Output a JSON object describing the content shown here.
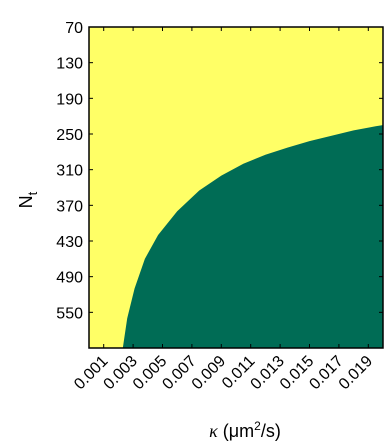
{
  "chart_data": {
    "type": "heatmap",
    "x_axis": {
      "label_symbol": "κ",
      "label_unit_prefix": "(μm",
      "label_unit_power": "2",
      "label_unit_suffix": "/s)",
      "range": [
        0.0,
        0.02
      ],
      "ticks": [
        "0.001",
        "0.003",
        "0.005",
        "0.007",
        "0.009",
        "0.011",
        "0.013",
        "0.015",
        "0.017",
        "0.019"
      ],
      "tick_values": [
        0.001,
        0.003,
        0.005,
        0.007,
        0.009,
        0.011,
        0.013,
        0.015,
        0.017,
        0.019
      ]
    },
    "y_axis": {
      "label_main": "N",
      "label_sub": "t",
      "range": [
        70,
        610
      ],
      "inverted": true,
      "ticks": [
        "70",
        "130",
        "190",
        "250",
        "310",
        "370",
        "430",
        "490",
        "550"
      ],
      "tick_values": [
        70,
        130,
        190,
        250,
        310,
        370,
        430,
        490,
        550
      ]
    },
    "regions": [
      {
        "name": "upper-left",
        "color": "#ffff66",
        "side": "above boundary"
      },
      {
        "name": "lower-right",
        "color": "#006c55",
        "side": "below boundary"
      }
    ],
    "boundary": [
      {
        "x": 0.0023,
        "y": 610
      },
      {
        "x": 0.0026,
        "y": 560
      },
      {
        "x": 0.0031,
        "y": 510
      },
      {
        "x": 0.0038,
        "y": 460
      },
      {
        "x": 0.0047,
        "y": 420
      },
      {
        "x": 0.006,
        "y": 380
      },
      {
        "x": 0.0075,
        "y": 345
      },
      {
        "x": 0.009,
        "y": 320
      },
      {
        "x": 0.0105,
        "y": 300
      },
      {
        "x": 0.012,
        "y": 285
      },
      {
        "x": 0.0135,
        "y": 273
      },
      {
        "x": 0.015,
        "y": 262
      },
      {
        "x": 0.0165,
        "y": 253
      },
      {
        "x": 0.018,
        "y": 244
      },
      {
        "x": 0.0195,
        "y": 237
      },
      {
        "x": 0.02,
        "y": 235
      }
    ],
    "grid": false
  }
}
